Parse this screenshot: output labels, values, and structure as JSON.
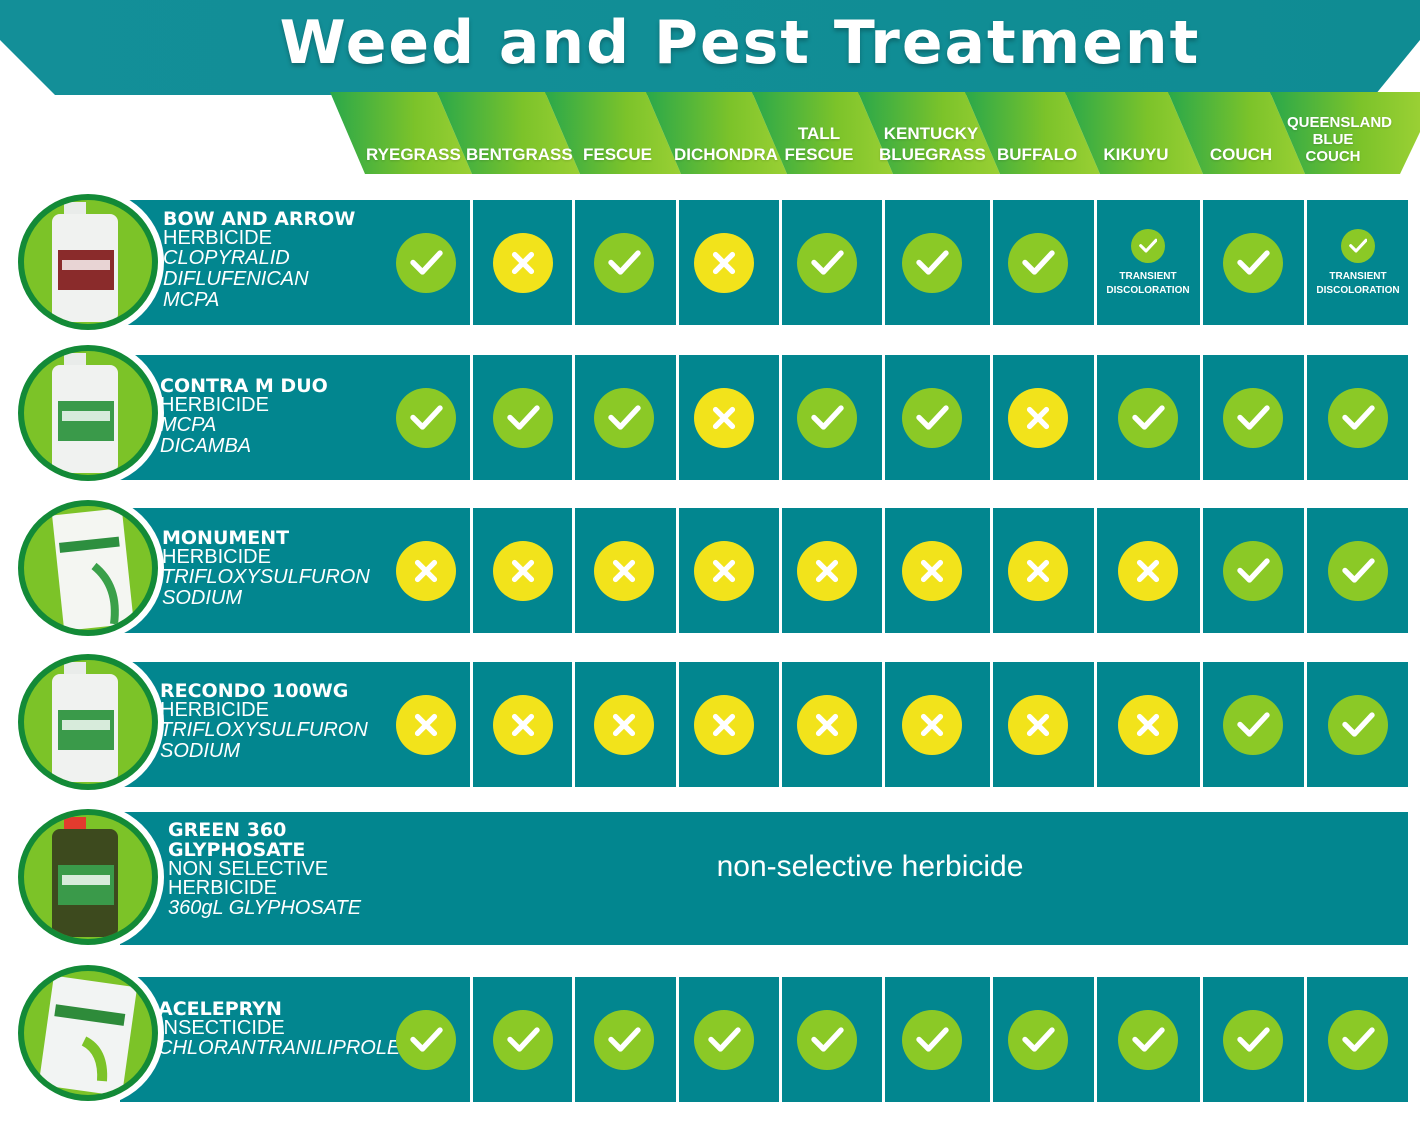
{
  "title": "Weed and Pest Treatment",
  "columns": [
    "RYEGRASS",
    "BENTGRASS",
    "FESCUE",
    "DICHONDRA",
    "TALL\nFESCUE",
    "KENTUCKY\nBLUEGRASS",
    "BUFFALO",
    "KIKUYU",
    "COUCH",
    "QUEENSLAND\nBLUE\nCOUCH"
  ],
  "products": [
    {
      "name": "BOW AND ARROW",
      "type": "HERBICIDE",
      "ingredients": [
        "CLOPYRALID",
        "DIFLUFENICAN",
        "MCPA"
      ],
      "image": "bow-and-arrow-bottle",
      "results": [
        "check",
        "cross",
        "check",
        "cross",
        "check",
        "check",
        "check",
        "check",
        "check",
        "check"
      ],
      "notes": [
        "",
        "",
        "",
        "",
        "",
        "",
        "",
        "TRANSIENT\nDISCOLORATION",
        "",
        "TRANSIENT\nDISCOLORATION"
      ]
    },
    {
      "name": "CONTRA M DUO",
      "type": "HERBICIDE",
      "ingredients": [
        "MCPA",
        "DICAMBA"
      ],
      "image": "contra-m-duo-bottle",
      "results": [
        "check",
        "check",
        "check",
        "cross",
        "check",
        "check",
        "cross",
        "check",
        "check",
        "check"
      ],
      "notes": [
        "",
        "",
        "",
        "",
        "",
        "",
        "",
        "",
        "",
        ""
      ]
    },
    {
      "name": "MONUMENT",
      "type": "HERBICIDE",
      "ingredients": [
        "TRIFLOXYSULFURON",
        "SODIUM"
      ],
      "image": "monument-box",
      "results": [
        "cross",
        "cross",
        "cross",
        "cross",
        "cross",
        "cross",
        "cross",
        "cross",
        "check",
        "check"
      ],
      "notes": [
        "",
        "",
        "",
        "",
        "",
        "",
        "",
        "",
        "",
        ""
      ]
    },
    {
      "name": "RECONDO 100WG",
      "type": "HERBICIDE",
      "ingredients": [
        "TRIFLOXYSULFURON",
        "SODIUM"
      ],
      "image": "recondo-bottle",
      "results": [
        "cross",
        "cross",
        "cross",
        "cross",
        "cross",
        "cross",
        "cross",
        "cross",
        "check",
        "check"
      ],
      "notes": [
        "",
        "",
        "",
        "",
        "",
        "",
        "",
        "",
        "",
        ""
      ]
    },
    {
      "name": "GREEN 360\nGLYPHOSATE",
      "type": "NON SELECTIVE\nHERBICIDE",
      "ingredients": [
        "360gL GLYPHOSATE"
      ],
      "image": "green-360-bottle",
      "results": [],
      "notes": [],
      "span_text": "non-selective herbicide"
    },
    {
      "name": "ACELEPRYN",
      "type": "INSECTICIDE",
      "ingredients": [
        "CHLORANTRANILIPROLE"
      ],
      "image": "acelepryn-bag",
      "results": [
        "check",
        "check",
        "check",
        "check",
        "check",
        "check",
        "check",
        "check",
        "check",
        "check"
      ],
      "notes": [
        "",
        "",
        "",
        "",
        "",
        "",
        "",
        "",
        "",
        ""
      ]
    }
  ],
  "colors": {
    "teal": "#02868f",
    "banner_teal": "#12939b",
    "green": "#8bc926",
    "yellow": "#f2e31b",
    "dark_green": "#138a37"
  },
  "icons": {
    "check": "check-icon",
    "cross": "cross-icon"
  }
}
